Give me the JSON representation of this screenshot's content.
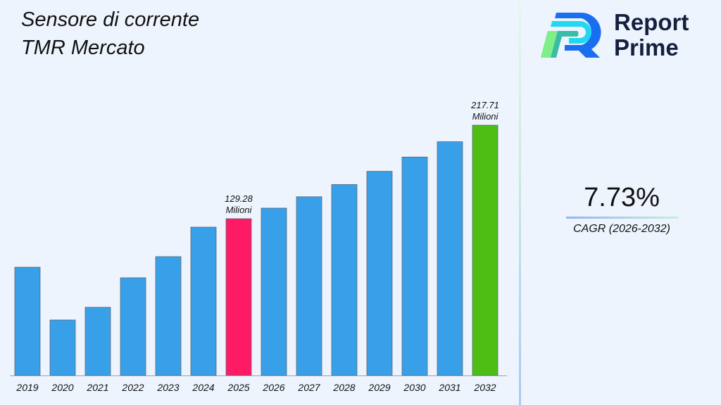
{
  "chart_data": {
    "type": "bar",
    "title": "Sensore di corrente TMR Mercato",
    "title_lines": [
      "Sensore di corrente",
      "TMR Mercato"
    ],
    "categories": [
      "2019",
      "2020",
      "2021",
      "2022",
      "2023",
      "2024",
      "2025",
      "2026",
      "2027",
      "2028",
      "2029",
      "2030",
      "2031",
      "2032"
    ],
    "values": [
      83.4,
      33.5,
      45.5,
      73.4,
      93.4,
      121.3,
      129.28,
      139.27,
      150.04,
      161.6,
      174.1,
      187.6,
      202.1,
      217.71
    ],
    "unit": "Milioni",
    "data_labels": {
      "6": [
        "129.28",
        "Milioni"
      ],
      "13": [
        "217.71",
        "Milioni"
      ]
    },
    "colors": {
      "default": "#38a0e8",
      "highlight_2025": "#ff1a66",
      "highlight_2032": "#4cbe14"
    },
    "grid": false,
    "legend": "none"
  },
  "cagr": {
    "value": "7.73%",
    "label": "CAGR (2026-2032)"
  },
  "brand": {
    "line1": "Report",
    "line2": "Prime"
  }
}
